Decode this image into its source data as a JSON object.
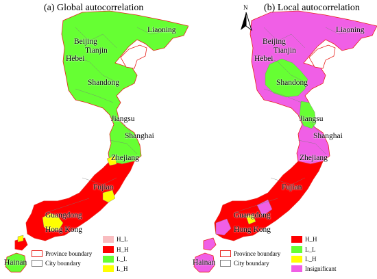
{
  "left": {
    "title": "(a) Global autocorrelation",
    "labels": {
      "liaoning": "Liaoning",
      "beijing": "Beijing",
      "tianjin": "Tianjin",
      "hebei": "Hebei",
      "shandong": "Shandong",
      "jiangsu": "Jiangsu",
      "shanghai": "Shanghai",
      "zhejiang": "Zhejiang",
      "fujian": "Fujian",
      "guangdong": "Guangdong",
      "hongkong": "Hong Kong",
      "hainan": "Hainan"
    },
    "legend": {
      "province_boundary": "Province boundary",
      "city_boundary": "City boundary",
      "classes": [
        {
          "label": "H_L",
          "color": "#F9BDC0"
        },
        {
          "label": "H_H",
          "color": "#FF0000"
        },
        {
          "label": "L_L",
          "color": "#66FF33"
        },
        {
          "label": "L_H",
          "color": "#FFFF00"
        }
      ]
    }
  },
  "right": {
    "title": "(b) Local autocorrelation",
    "north_label": "N",
    "labels": {
      "liaoning": "Liaoning",
      "beijing": "Beijing",
      "tianjin": "Tianjin",
      "hebei": "Hebei",
      "shandong": "Shandong",
      "jiangsu": "Jiangsu",
      "shanghai": "Shanghai",
      "zhejiang": "Zhejiang",
      "fujian": "Fujian",
      "guangdong": "Guangdong",
      "hongkong": "Hong Kong",
      "hainan": "Hainan"
    },
    "legend": {
      "province_boundary": "Province boundary",
      "city_boundary": "City boundary",
      "classes": [
        {
          "label": "H_H",
          "color": "#FF0000"
        },
        {
          "label": "L_L",
          "color": "#66FF33"
        },
        {
          "label": "L_H",
          "color": "#FFFF00"
        },
        {
          "label": "Insignificant",
          "color": "#F05FE6"
        }
      ]
    }
  },
  "colors": {
    "province_boundary": "#E8211B",
    "city_boundary": "#7A7A7A",
    "hh": "#FF0000",
    "ll": "#66FF33",
    "lh": "#FFFF00",
    "insignificant": "#F05FE6"
  }
}
